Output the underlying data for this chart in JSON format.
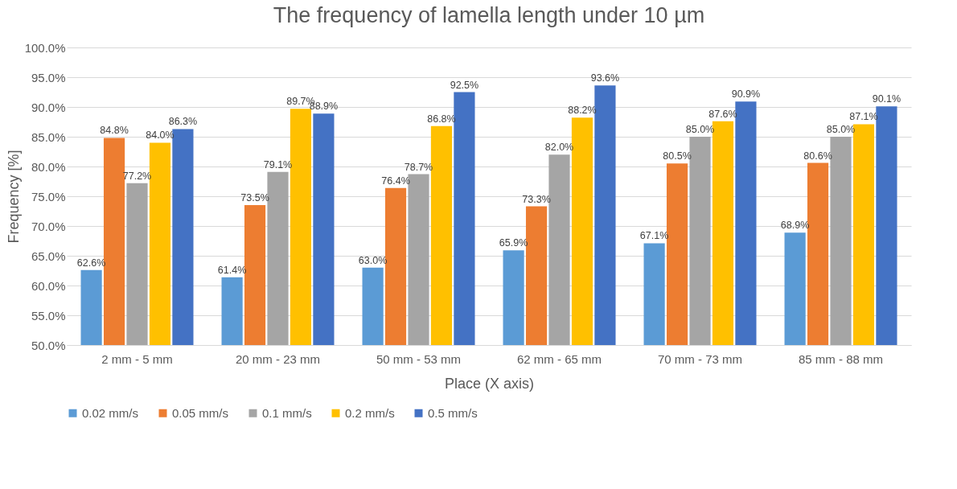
{
  "chart_data": {
    "type": "bar",
    "title": "The frequency of lamella length under 10 µm",
    "xlabel": "Place (X axis)",
    "ylabel": "Frequency [%]",
    "categories": [
      "2 mm - 5 mm",
      "20 mm - 23 mm",
      "50 mm - 53 mm",
      "62 mm - 65 mm",
      "70 mm - 73 mm",
      "85 mm - 88 mm"
    ],
    "series": [
      {
        "name": "0.02 mm/s",
        "color": "#5b9bd5",
        "values": [
          62.6,
          61.4,
          63.0,
          65.9,
          67.1,
          68.9
        ],
        "value_labels": [
          "62.6%",
          "61.4%",
          "63.0%",
          "65.9%",
          "67.1%",
          "68.9%"
        ]
      },
      {
        "name": "0.05 mm/s",
        "color": "#ed7d31",
        "values": [
          84.8,
          73.5,
          76.4,
          73.3,
          80.5,
          80.6
        ],
        "value_labels": [
          "84.8%",
          "73.5%",
          "76.4%",
          "73.3%",
          "80.5%",
          "80.6%"
        ]
      },
      {
        "name": "0.1 mm/s",
        "color": "#a5a5a5",
        "values": [
          77.2,
          79.1,
          78.7,
          82.0,
          85.0,
          85.0
        ],
        "value_labels": [
          "77.2%",
          "79.1%",
          "78.7%",
          "82.0%",
          "85.0%",
          "85.0%"
        ]
      },
      {
        "name": "0.2 mm/s",
        "color": "#ffc000",
        "values": [
          84.0,
          89.7,
          86.8,
          88.2,
          87.6,
          87.1
        ],
        "value_labels": [
          "84.0%",
          "89.7%",
          "86.8%",
          "88.2%",
          "87.6%",
          "87.1%"
        ]
      },
      {
        "name": "0.5 mm/s",
        "color": "#4472c4",
        "values": [
          86.3,
          88.9,
          92.5,
          93.6,
          90.9,
          90.1
        ],
        "value_labels": [
          "86.3%",
          "88.9%",
          "92.5%",
          "93.6%",
          "90.9%",
          "90.1%"
        ]
      }
    ],
    "ylim": [
      50,
      100
    ],
    "yticks": [
      {
        "value": 50,
        "label": "50.0%"
      },
      {
        "value": 55,
        "label": "55.0%"
      },
      {
        "value": 60,
        "label": "60.0%"
      },
      {
        "value": 65,
        "label": "65.0%"
      },
      {
        "value": 70,
        "label": "70.0%"
      },
      {
        "value": 75,
        "label": "75.0%"
      },
      {
        "value": 80,
        "label": "80.0%"
      },
      {
        "value": 85,
        "label": "85.0%"
      },
      {
        "value": 90,
        "label": "90.0%"
      },
      {
        "value": 95,
        "label": "95.0%"
      },
      {
        "value": 100,
        "label": "100.0%"
      }
    ],
    "grid": "y",
    "legend": "bottom"
  }
}
